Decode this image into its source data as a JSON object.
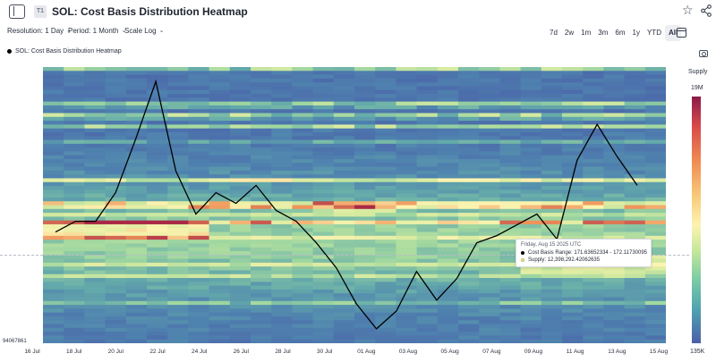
{
  "header": {
    "tier": "T1",
    "title": "SOL: Cost Basis Distribution Heatmap"
  },
  "controls": {
    "resolution": "Resolution: 1 Day",
    "period": "Period: 1 Month",
    "scale": "Scale Log"
  },
  "ranges": [
    {
      "label": "7d",
      "active": false
    },
    {
      "label": "2w",
      "active": false
    },
    {
      "label": "1m",
      "active": false
    },
    {
      "label": "3m",
      "active": false
    },
    {
      "label": "6m",
      "active": false
    },
    {
      "label": "1y",
      "active": false
    },
    {
      "label": "YTD",
      "active": false
    },
    {
      "label": "All",
      "active": true
    }
  ],
  "legend": {
    "series_label": "SOL: Cost Basis Distribution Heatmap"
  },
  "colorbar": {
    "title": "Supply",
    "max_label": "19M",
    "min_label": "135K"
  },
  "tooltip": {
    "date": "Friday, Aug 15 2025 UTC",
    "range_label": "Cost Basis Range:",
    "range_value": "171.63652334 - 172.11730095",
    "supply_label": "Supply:",
    "supply_value": "12,398,292.42062635"
  },
  "colors": {
    "line": "#000000",
    "heat_low": "#4a5fa8",
    "heat_mid": "#fdf3b0",
    "heat_high": "#8b1a48"
  },
  "chart_data": {
    "type": "heatmap",
    "title": "SOL: Cost Basis Distribution Heatmap",
    "y_min_label": "94067861",
    "x_ticks": [
      "16 Jul",
      "18 Jul",
      "20 Jul",
      "22 Jul",
      "24 Jul",
      "26 Jul",
      "28 Jul",
      "30 Jul",
      "01 Aug",
      "03 Aug",
      "05 Aug",
      "07 Aug",
      "09 Aug",
      "11 Aug",
      "13 Aug",
      "15 Aug"
    ],
    "price_series": {
      "dates": [
        "17 Jul",
        "18 Jul",
        "19 Jul",
        "20 Jul",
        "21 Jul",
        "22 Jul",
        "23 Jul",
        "24 Jul",
        "25 Jul",
        "26 Jul",
        "27 Jul",
        "28 Jul",
        "29 Jul",
        "30 Jul",
        "31 Jul",
        "01 Aug",
        "02 Aug",
        "03 Aug",
        "04 Aug",
        "05 Aug",
        "06 Aug",
        "07 Aug",
        "08 Aug",
        "09 Aug",
        "10 Aug",
        "11 Aug",
        "12 Aug",
        "13 Aug",
        "14 Aug",
        "15 Aug"
      ],
      "values": [
        176,
        179,
        179,
        187,
        202,
        218,
        193,
        181,
        187,
        184,
        189,
        182,
        179,
        173,
        166,
        156,
        149,
        154,
        165,
        157,
        163,
        173,
        175,
        178,
        181,
        174,
        196,
        206,
        197,
        189
      ]
    },
    "supply_range": [
      135000,
      19000000
    ],
    "colorscale": "log"
  }
}
